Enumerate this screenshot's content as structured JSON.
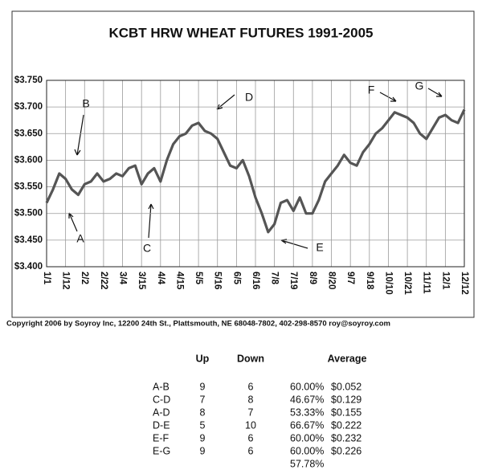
{
  "chart_data": {
    "type": "line",
    "title": "KCBT HRW WHEAT FUTURES 1991-2005",
    "categories": [
      "1/1",
      null,
      null,
      "1/12",
      null,
      null,
      "2/2",
      null,
      null,
      "2/22",
      null,
      null,
      "3/4",
      null,
      null,
      "3/15",
      null,
      null,
      "4/4",
      null,
      null,
      "4/15",
      null,
      null,
      "5/5",
      null,
      null,
      "5/16",
      null,
      null,
      "6/5",
      null,
      null,
      "6/16",
      null,
      null,
      "7/8",
      null,
      null,
      "7/19",
      null,
      null,
      "8/9",
      null,
      null,
      "8/20",
      null,
      null,
      "9/7",
      null,
      null,
      "9/18",
      null,
      null,
      "10/10",
      null,
      null,
      "10/21",
      null,
      null,
      "11/11",
      null,
      null,
      "12/1",
      null,
      null,
      "12/12"
    ],
    "series": [
      {
        "color": "#555555",
        "values": [
          3.52,
          3.545,
          3.575,
          3.565,
          3.545,
          3.535,
          3.555,
          3.56,
          3.575,
          3.56,
          3.565,
          3.575,
          3.57,
          3.585,
          3.59,
          3.555,
          3.575,
          3.585,
          3.56,
          3.6,
          3.63,
          3.645,
          3.65,
          3.665,
          3.67,
          3.655,
          3.65,
          3.64,
          3.615,
          3.59,
          3.585,
          3.6,
          3.57,
          3.53,
          3.5,
          3.465,
          3.48,
          3.52,
          3.525,
          3.505,
          3.53,
          3.5,
          3.5,
          3.525,
          3.56,
          3.575,
          3.59,
          3.61,
          3.595,
          3.59,
          3.615,
          3.63,
          3.65,
          3.66,
          3.675,
          3.69,
          3.685,
          3.68,
          3.67,
          3.65,
          3.64,
          3.66,
          3.68,
          3.685,
          3.675,
          3.67,
          3.695
        ]
      }
    ],
    "ylim": [
      3.4,
      3.75
    ],
    "yticks": [
      {
        "value": 3.4,
        "label": "$3.400"
      },
      {
        "value": 3.45,
        "label": "$3.450"
      },
      {
        "value": 3.5,
        "label": "$3.500"
      },
      {
        "value": 3.55,
        "label": "$3.550"
      },
      {
        "value": 3.6,
        "label": "$3.600"
      },
      {
        "value": 3.65,
        "label": "$3.650"
      },
      {
        "value": 3.7,
        "label": "$3.700"
      },
      {
        "value": 3.75,
        "label": "$3.750"
      }
    ],
    "grid": true,
    "annotations": [
      "A",
      "B",
      "C",
      "D",
      "E",
      "F",
      "G"
    ]
  },
  "copyright": "Copyright 2006 by Soyroy Inc, 12200 24th St., Plattsmouth, NE 68048-7802, 402-298-8570 roy@soyroy.com",
  "table": {
    "header": [
      "Up",
      "Down",
      "Average"
    ],
    "rows": [
      [
        "A-B",
        "9",
        "6",
        "60.00%",
        "$0.052"
      ],
      [
        "C-D",
        "7",
        "8",
        "46.67%",
        "$0.129"
      ],
      [
        "A-D",
        "8",
        "7",
        "53.33%",
        "$0.155"
      ],
      [
        "D-E",
        "5",
        "10",
        "66.67%",
        "$0.222"
      ],
      [
        "E-F",
        "9",
        "6",
        "60.00%",
        "$0.232"
      ],
      [
        "E-G",
        "9",
        "6",
        "60.00%",
        "$0.226"
      ],
      [
        "57.78%"
      ]
    ]
  }
}
